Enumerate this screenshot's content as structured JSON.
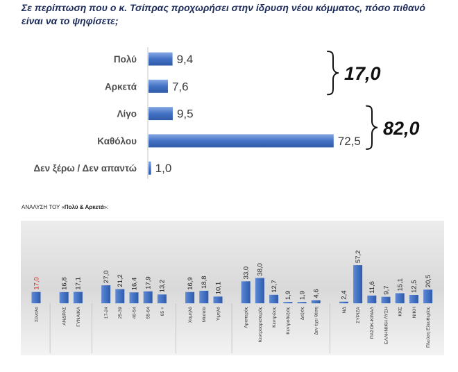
{
  "title_lines": [
    "Σε περίπτωση που ο κ. Τσίπρας προχωρήσει στην ίδρυση νέου κόμματος, πόσο πιθανό",
    "είναι να το ψηφίσετε;"
  ],
  "colors": {
    "title": "#1c2b5a",
    "bar": "#4472c4",
    "bar_light": "#86a8e4",
    "bar_dark": "#2f5aa8",
    "text": "#222222",
    "highlight_label": "#e3201b",
    "brace": "#111111"
  },
  "chart_data": [
    {
      "type": "bar",
      "orientation": "horizontal",
      "categories": [
        "Πολύ",
        "Αρκετά",
        "Λίγο",
        "Καθόλου",
        "Δεν ξέρω / Δεν απαντώ"
      ],
      "values": [
        9.4,
        7.6,
        9.5,
        72.5,
        1.0
      ],
      "value_labels": [
        "9,4",
        "7,6",
        "9,5",
        "72,5",
        "1,0"
      ],
      "brackets": [
        {
          "categories": [
            "Πολύ",
            "Αρκετά"
          ],
          "label": "17,0"
        },
        {
          "categories": [
            "Λίγο",
            "Καθόλου"
          ],
          "label": "82,0"
        }
      ],
      "grid": false
    },
    {
      "type": "bar",
      "orientation": "vertical",
      "title_parts": [
        "ΑΝΑΛΥΣΗ ΤΟΥ «",
        "Πολύ & Αρκετά",
        "»:"
      ],
      "grid": false,
      "groups": [
        {
          "categories": [
            "Σύνολο"
          ],
          "values": [
            17.0
          ],
          "value_labels": [
            "17,0"
          ],
          "highlight": true
        },
        {
          "categories": [
            "ΑΝΔΡΑΣ",
            "ΓΥΝΑΙΚΑ"
          ],
          "values": [
            16.8,
            17.1
          ],
          "value_labels": [
            "16,8",
            "17,1"
          ]
        },
        {
          "categories": [
            "17-24",
            "25-39",
            "40-54",
            "55-64",
            "65 +"
          ],
          "values": [
            27.0,
            21.2,
            16.4,
            17.9,
            13.2
          ],
          "value_labels": [
            "27,0",
            "21,2",
            "16,4",
            "17,9",
            "13,2"
          ]
        },
        {
          "categories": [
            "Χαμηλό",
            "Μεσαίο",
            "Υψηλό"
          ],
          "values": [
            16.9,
            18.8,
            10.1
          ],
          "value_labels": [
            "16,9",
            "18,8",
            "10,1"
          ]
        },
        {
          "categories": [
            "Αριστερός",
            "Κεντροαριστερός",
            "Κεντρώος",
            "Κεντροδεξιός",
            "Δεξιός",
            "Δεν έχει θέση"
          ],
          "values": [
            33.0,
            38.0,
            12.7,
            1.9,
            1.9,
            4.6
          ],
          "value_labels": [
            "33,0",
            "38,0",
            "12,7",
            "1,9",
            "1,9",
            "4,6"
          ]
        },
        {
          "categories": [
            "ΝΔ",
            "ΣΥΡΙΖΑ",
            "ΠΑΣΟΚ-ΚΙΝΑΛ",
            "ΕΛΛΗΝΙΚΗ ΛΥΣΗ",
            "ΚΚΕ",
            "ΝΙΚΗ",
            "Πλεύση Ελευθερίας"
          ],
          "values": [
            2.4,
            57.2,
            11.6,
            9.7,
            15.1,
            12.5,
            20.5
          ],
          "value_labels": [
            "2,4",
            "57,2",
            "11,6",
            "9,7",
            "15,1",
            "12,5",
            "20,5"
          ]
        }
      ]
    }
  ]
}
